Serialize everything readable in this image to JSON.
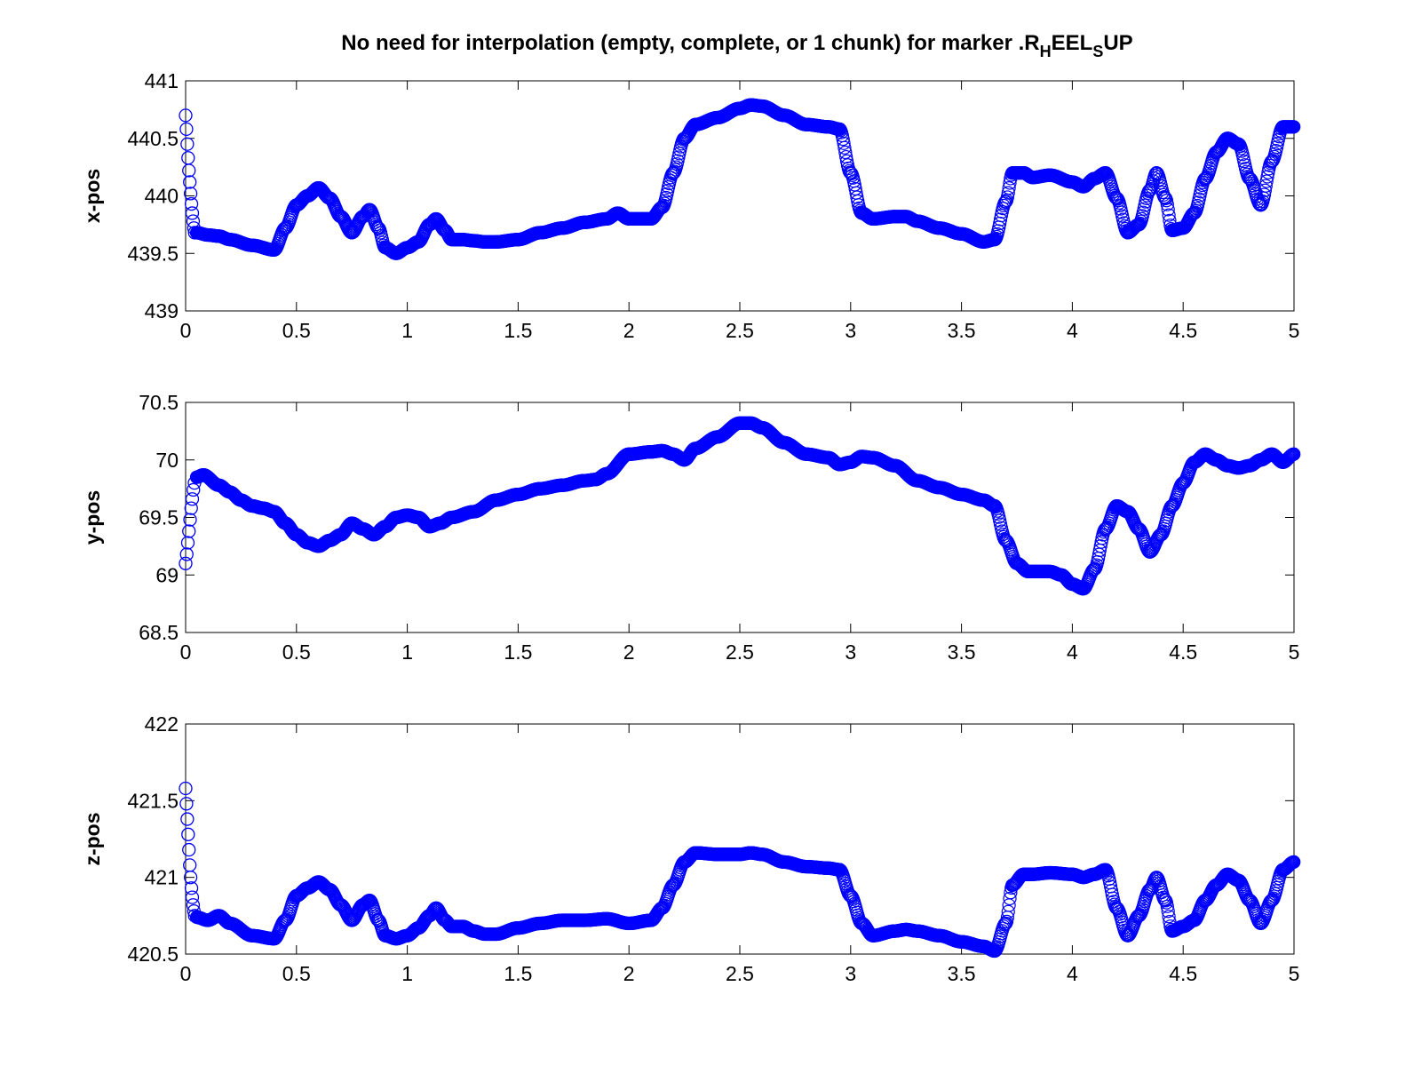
{
  "figure": {
    "title_main": "No need for interpolation (empty, complete, or 1 chunk) for marker .R",
    "title_sub1": "H",
    "title_mid": "EEL",
    "title_sub2": "S",
    "title_end": "UP"
  },
  "colors": {
    "marker": "#0000ff",
    "axes": "#000000",
    "background": "#ffffff"
  },
  "chart_data": [
    {
      "type": "scatter",
      "marker": "circle-open",
      "ylabel": "x-pos",
      "xlabel": "",
      "xlim": [
        0,
        5
      ],
      "ylim": [
        439,
        441
      ],
      "xticks": [
        "0",
        "0.5",
        "1",
        "1.5",
        "2",
        "2.5",
        "3",
        "3.5",
        "4",
        "4.5",
        "5"
      ],
      "yticks": [
        "439",
        "439.5",
        "440",
        "440.5",
        "441"
      ],
      "grid": false,
      "initial_points": [
        440.7,
        440.58,
        440.45,
        440.33,
        440.22,
        440.12,
        440.02,
        439.93,
        439.85,
        439.78,
        439.72,
        439.68
      ],
      "x": [
        0.05,
        0.1,
        0.15,
        0.2,
        0.3,
        0.4,
        0.45,
        0.5,
        0.55,
        0.6,
        0.65,
        0.7,
        0.75,
        0.8,
        0.83,
        0.87,
        0.9,
        0.95,
        1.0,
        1.05,
        1.1,
        1.13,
        1.17,
        1.2,
        1.25,
        1.3,
        1.35,
        1.4,
        1.5,
        1.6,
        1.7,
        1.8,
        1.9,
        1.95,
        2.0,
        2.1,
        2.15,
        2.2,
        2.25,
        2.3,
        2.4,
        2.5,
        2.55,
        2.6,
        2.7,
        2.8,
        2.9,
        2.95,
        3.0,
        3.05,
        3.1,
        3.2,
        3.25,
        3.3,
        3.4,
        3.5,
        3.6,
        3.65,
        3.7,
        3.73,
        3.78,
        3.82,
        3.9,
        4.0,
        4.05,
        4.1,
        4.15,
        4.2,
        4.25,
        4.3,
        4.35,
        4.38,
        4.42,
        4.45,
        4.5,
        4.55,
        4.6,
        4.65,
        4.7,
        4.75,
        4.8,
        4.85,
        4.9,
        4.95,
        5.0
      ],
      "y": [
        439.68,
        439.66,
        439.65,
        439.62,
        439.57,
        439.53,
        439.72,
        439.92,
        440.0,
        440.07,
        439.98,
        439.82,
        439.68,
        439.82,
        439.88,
        439.72,
        439.55,
        439.5,
        439.55,
        439.6,
        439.75,
        439.8,
        439.7,
        439.62,
        439.62,
        439.61,
        439.6,
        439.6,
        439.62,
        439.68,
        439.72,
        439.77,
        439.8,
        439.85,
        439.8,
        439.8,
        439.9,
        440.2,
        440.5,
        440.62,
        440.68,
        440.76,
        440.79,
        440.78,
        440.7,
        440.62,
        440.6,
        440.58,
        440.2,
        439.85,
        439.8,
        439.82,
        439.82,
        439.78,
        439.72,
        439.67,
        439.6,
        439.62,
        439.95,
        440.2,
        440.2,
        440.16,
        440.18,
        440.12,
        440.08,
        440.15,
        440.2,
        439.98,
        439.68,
        439.75,
        440.05,
        440.2,
        439.98,
        439.7,
        439.72,
        439.85,
        440.15,
        440.38,
        440.5,
        440.45,
        440.15,
        439.92,
        440.3,
        440.6,
        440.6
      ]
    },
    {
      "type": "scatter",
      "marker": "circle-open",
      "ylabel": "y-pos",
      "xlabel": "",
      "xlim": [
        0,
        5
      ],
      "ylim": [
        68.5,
        70.5
      ],
      "xticks": [
        "0",
        "0.5",
        "1",
        "1.5",
        "2",
        "2.5",
        "3",
        "3.5",
        "4",
        "4.5",
        "5"
      ],
      "yticks": [
        "68.5",
        "69",
        "69.5",
        "70",
        "70.5"
      ],
      "grid": false,
      "initial_points": [
        69.1,
        69.18,
        69.28,
        69.38,
        69.48,
        69.58,
        69.66,
        69.74,
        69.8
      ],
      "x": [
        0.05,
        0.08,
        0.15,
        0.2,
        0.25,
        0.3,
        0.35,
        0.4,
        0.45,
        0.5,
        0.55,
        0.6,
        0.65,
        0.7,
        0.75,
        0.8,
        0.85,
        0.9,
        0.95,
        1.0,
        1.05,
        1.1,
        1.15,
        1.2,
        1.3,
        1.4,
        1.5,
        1.6,
        1.7,
        1.8,
        1.85,
        1.9,
        2.0,
        2.1,
        2.15,
        2.2,
        2.25,
        2.3,
        2.4,
        2.5,
        2.55,
        2.6,
        2.7,
        2.8,
        2.9,
        2.95,
        3.0,
        3.05,
        3.1,
        3.2,
        3.3,
        3.4,
        3.5,
        3.6,
        3.65,
        3.7,
        3.75,
        3.8,
        3.85,
        3.9,
        3.95,
        4.0,
        4.05,
        4.1,
        4.15,
        4.2,
        4.25,
        4.3,
        4.35,
        4.4,
        4.45,
        4.5,
        4.55,
        4.6,
        4.65,
        4.7,
        4.75,
        4.8,
        4.85,
        4.9,
        4.95,
        5.0
      ],
      "y": [
        69.85,
        69.87,
        69.78,
        69.72,
        69.65,
        69.6,
        69.58,
        69.55,
        69.45,
        69.35,
        69.28,
        69.25,
        69.3,
        69.35,
        69.45,
        69.4,
        69.35,
        69.42,
        69.5,
        69.52,
        69.5,
        69.42,
        69.45,
        69.5,
        69.55,
        69.65,
        69.7,
        69.75,
        69.78,
        69.82,
        69.83,
        69.88,
        70.05,
        70.07,
        70.08,
        70.05,
        70.0,
        70.1,
        70.2,
        70.32,
        70.32,
        70.28,
        70.15,
        70.05,
        70.02,
        69.96,
        69.98,
        70.03,
        70.02,
        69.95,
        69.82,
        69.76,
        69.7,
        69.65,
        69.6,
        69.3,
        69.1,
        69.03,
        69.03,
        69.03,
        69.0,
        68.92,
        68.88,
        69.05,
        69.4,
        69.6,
        69.55,
        69.4,
        69.2,
        69.35,
        69.6,
        69.8,
        69.98,
        70.05,
        70.0,
        69.95,
        69.93,
        69.95,
        70.0,
        70.05,
        69.98,
        70.05
      ]
    },
    {
      "type": "scatter",
      "marker": "circle-open",
      "ylabel": "z-pos",
      "xlabel": "",
      "xlim": [
        0,
        5
      ],
      "ylim": [
        420.5,
        422
      ],
      "xticks": [
        "0",
        "0.5",
        "1",
        "1.5",
        "2",
        "2.5",
        "3",
        "3.5",
        "4",
        "4.5",
        "5"
      ],
      "yticks": [
        "420.5",
        "421",
        "421.5",
        "422"
      ],
      "grid": false,
      "initial_points": [
        421.58,
        421.48,
        421.38,
        421.28,
        421.18,
        421.08,
        421.0,
        420.93,
        420.87,
        420.82,
        420.78,
        420.75
      ],
      "x": [
        0.05,
        0.1,
        0.15,
        0.2,
        0.3,
        0.4,
        0.45,
        0.5,
        0.55,
        0.6,
        0.65,
        0.7,
        0.75,
        0.8,
        0.83,
        0.87,
        0.9,
        0.95,
        1.0,
        1.05,
        1.1,
        1.13,
        1.17,
        1.2,
        1.25,
        1.3,
        1.35,
        1.4,
        1.5,
        1.6,
        1.7,
        1.8,
        1.9,
        2.0,
        2.1,
        2.15,
        2.2,
        2.25,
        2.3,
        2.4,
        2.5,
        2.55,
        2.6,
        2.7,
        2.8,
        2.9,
        2.95,
        3.0,
        3.05,
        3.1,
        3.2,
        3.25,
        3.3,
        3.4,
        3.5,
        3.6,
        3.65,
        3.7,
        3.73,
        3.78,
        3.82,
        3.9,
        4.0,
        4.05,
        4.1,
        4.15,
        4.2,
        4.25,
        4.3,
        4.35,
        4.38,
        4.42,
        4.45,
        4.5,
        4.55,
        4.6,
        4.65,
        4.7,
        4.75,
        4.8,
        4.85,
        4.9,
        4.95,
        5.0
      ],
      "y": [
        420.74,
        420.72,
        420.75,
        420.7,
        420.62,
        420.6,
        420.72,
        420.88,
        420.93,
        420.97,
        420.92,
        420.82,
        420.72,
        420.82,
        420.85,
        420.72,
        420.62,
        420.6,
        420.62,
        420.67,
        420.75,
        420.8,
        420.72,
        420.68,
        420.68,
        420.65,
        420.63,
        420.63,
        420.67,
        420.7,
        420.72,
        420.72,
        420.73,
        420.7,
        420.72,
        420.8,
        420.95,
        421.1,
        421.16,
        421.15,
        421.15,
        421.16,
        421.15,
        421.1,
        421.07,
        421.06,
        421.05,
        420.88,
        420.7,
        420.62,
        420.65,
        420.66,
        420.65,
        420.62,
        420.58,
        420.55,
        420.52,
        420.7,
        420.95,
        421.02,
        421.02,
        421.03,
        421.02,
        421.0,
        421.02,
        421.05,
        420.8,
        420.62,
        420.75,
        420.92,
        421.0,
        420.85,
        420.65,
        420.68,
        420.72,
        420.85,
        420.95,
        421.02,
        420.98,
        420.85,
        420.7,
        420.85,
        421.05,
        421.1
      ]
    }
  ]
}
